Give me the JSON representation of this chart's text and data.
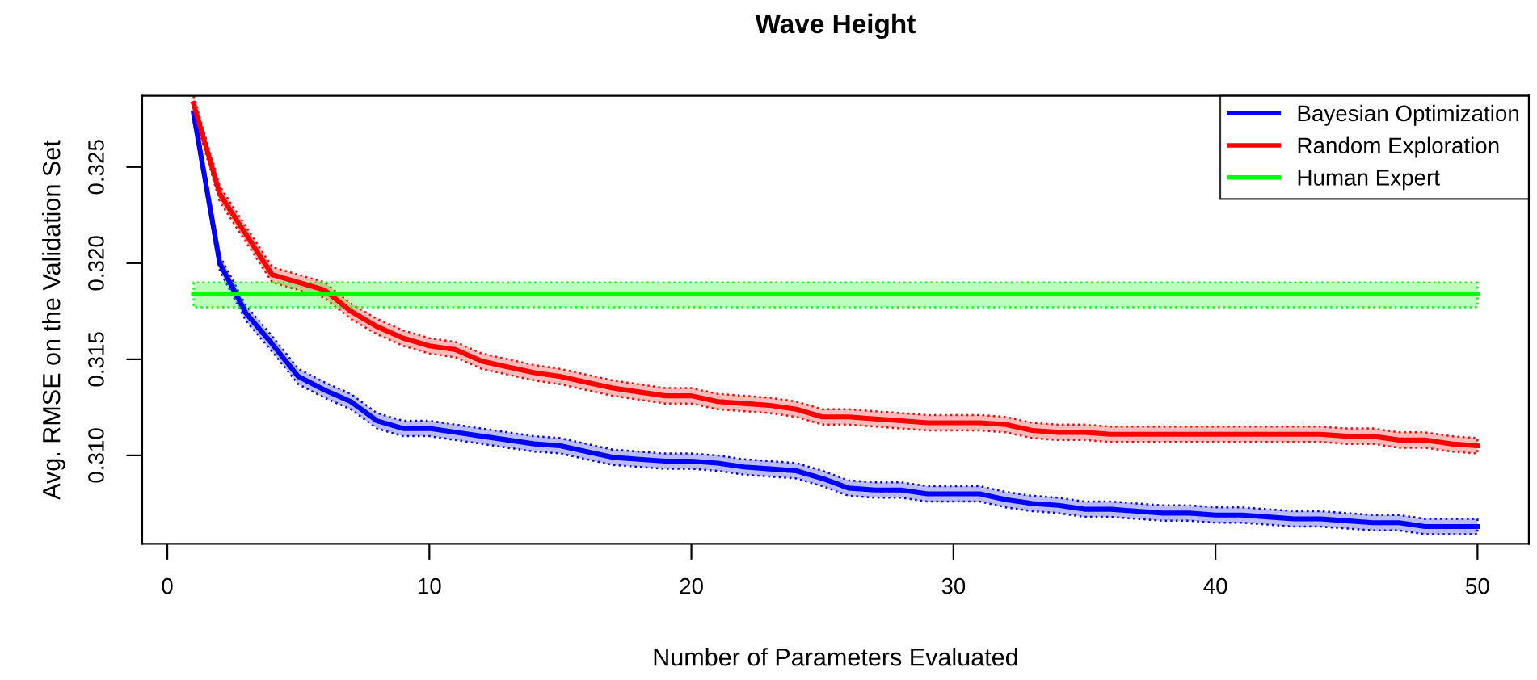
{
  "chart_data": {
    "type": "line",
    "title": "Wave Height",
    "xlabel": "Number of Parameters Evaluated",
    "ylabel": "Avg. RMSE on the Validation Set",
    "x": [
      1,
      2,
      3,
      4,
      5,
      6,
      7,
      8,
      9,
      10,
      11,
      12,
      13,
      14,
      15,
      16,
      17,
      18,
      19,
      20,
      21,
      22,
      23,
      24,
      25,
      26,
      27,
      28,
      29,
      30,
      31,
      32,
      33,
      34,
      35,
      36,
      37,
      38,
      39,
      40,
      41,
      42,
      43,
      44,
      45,
      46,
      47,
      48,
      49,
      50
    ],
    "series": [
      {
        "name": "Bayesian Optimization",
        "color": "#0000ff",
        "values": [
          0.3278,
          0.32,
          0.3174,
          0.3158,
          0.3141,
          0.3134,
          0.3128,
          0.3118,
          0.3114,
          0.3114,
          0.3112,
          0.311,
          0.3108,
          0.3106,
          0.3105,
          0.3102,
          0.3099,
          0.3098,
          0.3097,
          0.3097,
          0.3096,
          0.3094,
          0.3093,
          0.3092,
          0.3088,
          0.3083,
          0.3082,
          0.3082,
          0.308,
          0.308,
          0.308,
          0.3077,
          0.3075,
          0.3074,
          0.3072,
          0.3072,
          0.3071,
          0.307,
          0.307,
          0.3069,
          0.3069,
          0.3068,
          0.3067,
          0.3067,
          0.3066,
          0.3065,
          0.3065,
          0.3063,
          0.3063,
          0.3063
        ],
        "lower": [
          0.3274,
          0.3196,
          0.317,
          0.3154,
          0.3137,
          0.313,
          0.3124,
          0.3114,
          0.311,
          0.311,
          0.3108,
          0.3106,
          0.3104,
          0.3102,
          0.3101,
          0.3098,
          0.3095,
          0.3094,
          0.3093,
          0.3093,
          0.3092,
          0.309,
          0.3089,
          0.3088,
          0.3084,
          0.3079,
          0.3078,
          0.3078,
          0.3076,
          0.3076,
          0.3076,
          0.3073,
          0.3071,
          0.307,
          0.3068,
          0.3068,
          0.3067,
          0.3066,
          0.3066,
          0.3065,
          0.3065,
          0.3064,
          0.3063,
          0.3063,
          0.3062,
          0.3061,
          0.3061,
          0.3059,
          0.3059,
          0.3059
        ],
        "upper": [
          0.3282,
          0.3204,
          0.3178,
          0.3162,
          0.3145,
          0.3138,
          0.3132,
          0.3122,
          0.3118,
          0.3118,
          0.3116,
          0.3114,
          0.3112,
          0.311,
          0.3109,
          0.3106,
          0.3103,
          0.3102,
          0.3101,
          0.3101,
          0.31,
          0.3098,
          0.3097,
          0.3096,
          0.3092,
          0.3087,
          0.3086,
          0.3086,
          0.3084,
          0.3084,
          0.3084,
          0.3081,
          0.3079,
          0.3078,
          0.3076,
          0.3076,
          0.3075,
          0.3074,
          0.3074,
          0.3073,
          0.3073,
          0.3072,
          0.3071,
          0.3071,
          0.307,
          0.3069,
          0.3069,
          0.3067,
          0.3067,
          0.3067
        ]
      },
      {
        "name": "Random Exploration",
        "color": "#ff0000",
        "values": [
          0.3283,
          0.3236,
          0.3215,
          0.3194,
          0.319,
          0.3186,
          0.3175,
          0.3167,
          0.3161,
          0.3157,
          0.3155,
          0.3149,
          0.3146,
          0.3143,
          0.3141,
          0.3138,
          0.3135,
          0.3133,
          0.3131,
          0.3131,
          0.3128,
          0.3127,
          0.3126,
          0.3124,
          0.312,
          0.312,
          0.3119,
          0.3118,
          0.3117,
          0.3117,
          0.3117,
          0.3116,
          0.3113,
          0.3112,
          0.3112,
          0.3111,
          0.3111,
          0.3111,
          0.3111,
          0.3111,
          0.3111,
          0.3111,
          0.3111,
          0.3111,
          0.311,
          0.311,
          0.3108,
          0.3108,
          0.3106,
          0.3105
        ],
        "lower": [
          0.3279,
          0.3232,
          0.3211,
          0.319,
          0.3186,
          0.3182,
          0.3171,
          0.3163,
          0.3157,
          0.3153,
          0.3151,
          0.3145,
          0.3142,
          0.3139,
          0.3137,
          0.3134,
          0.3131,
          0.3129,
          0.3127,
          0.3127,
          0.3124,
          0.3123,
          0.3122,
          0.312,
          0.3116,
          0.3116,
          0.3115,
          0.3114,
          0.3113,
          0.3113,
          0.3113,
          0.3112,
          0.3109,
          0.3108,
          0.3108,
          0.3107,
          0.3107,
          0.3107,
          0.3107,
          0.3107,
          0.3107,
          0.3107,
          0.3107,
          0.3107,
          0.3106,
          0.3106,
          0.3104,
          0.3104,
          0.3102,
          0.3101
        ],
        "upper": [
          0.3287,
          0.324,
          0.3219,
          0.3198,
          0.3194,
          0.319,
          0.3179,
          0.3171,
          0.3165,
          0.3161,
          0.3159,
          0.3153,
          0.315,
          0.3147,
          0.3145,
          0.3142,
          0.3139,
          0.3137,
          0.3135,
          0.3135,
          0.3132,
          0.3131,
          0.313,
          0.3128,
          0.3124,
          0.3124,
          0.3123,
          0.3122,
          0.3121,
          0.3121,
          0.3121,
          0.312,
          0.3117,
          0.3116,
          0.3116,
          0.3115,
          0.3115,
          0.3115,
          0.3115,
          0.3115,
          0.3115,
          0.3115,
          0.3115,
          0.3115,
          0.3114,
          0.3114,
          0.3112,
          0.3112,
          0.311,
          0.3109
        ]
      },
      {
        "name": "Human Expert",
        "color": "#00ff00",
        "x": [
          1,
          50
        ],
        "values": [
          0.3184,
          0.3184
        ],
        "lower": [
          0.3177,
          0.3177
        ],
        "upper": [
          0.319,
          0.319
        ]
      }
    ],
    "xlim": [
      -0.96,
      51.96
    ],
    "xticks": [
      0,
      10,
      20,
      30,
      40,
      50
    ],
    "ylim": [
      0.3054,
      0.3287
    ],
    "yticks": [
      {
        "value": 0.31,
        "label": "0.310"
      },
      {
        "value": 0.315,
        "label": "0.315"
      },
      {
        "value": 0.32,
        "label": "0.320"
      },
      {
        "value": 0.325,
        "label": "0.325"
      }
    ],
    "grid": false,
    "legend": "top right",
    "line_style": "solid"
  }
}
